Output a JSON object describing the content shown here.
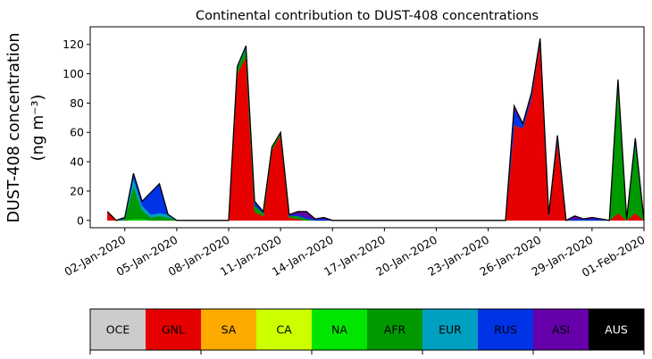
{
  "chart_data": {
    "type": "area",
    "stacked": true,
    "title": "Continental contribution to DUST-408 concentrations",
    "ylabel": "DUST-408 concentration",
    "ylabel_unit": "(ng m⁻³)",
    "xlabel": "",
    "ylim": [
      -5,
      132
    ],
    "y_ticks": [
      0,
      20,
      40,
      60,
      80,
      100,
      120
    ],
    "x_range": [
      "2019-12-31",
      "2020-02-01"
    ],
    "x_ticks": [
      "02-Jan-2020",
      "05-Jan-2020",
      "08-Jan-2020",
      "11-Jan-2020",
      "14-Jan-2020",
      "17-Jan-2020",
      "20-Jan-2020",
      "23-Jan-2020",
      "26-Jan-2020",
      "29-Jan-2020",
      "01-Feb-2020"
    ],
    "x_tick_dates": [
      "2020-01-02",
      "2020-01-05",
      "2020-01-08",
      "2020-01-11",
      "2020-01-14",
      "2020-01-17",
      "2020-01-20",
      "2020-01-23",
      "2020-01-26",
      "2020-01-29",
      "2020-02-01"
    ],
    "grid": false,
    "x": [
      "2020-01-01",
      "2020-01-01 12:00",
      "2020-01-02",
      "2020-01-02 12:00",
      "2020-01-03",
      "2020-01-03 12:00",
      "2020-01-04",
      "2020-01-04 12:00",
      "2020-01-05",
      "2020-01-05 12:00",
      "2020-01-06",
      "2020-01-06 12:00",
      "2020-01-07",
      "2020-01-07 12:00",
      "2020-01-08",
      "2020-01-08 12:00",
      "2020-01-09",
      "2020-01-09 12:00",
      "2020-01-10",
      "2020-01-10 12:00",
      "2020-01-11",
      "2020-01-11 12:00",
      "2020-01-12",
      "2020-01-12 12:00",
      "2020-01-13",
      "2020-01-13 12:00",
      "2020-01-14",
      "2020-01-14 12:00",
      "2020-01-15",
      "2020-01-15 12:00",
      "2020-01-16",
      "2020-01-16 12:00",
      "2020-01-17",
      "2020-01-17 12:00",
      "2020-01-18",
      "2020-01-18 12:00",
      "2020-01-19",
      "2020-01-19 12:00",
      "2020-01-20",
      "2020-01-20 12:00",
      "2020-01-21",
      "2020-01-21 12:00",
      "2020-01-22",
      "2020-01-22 12:00",
      "2020-01-23",
      "2020-01-23 12:00",
      "2020-01-24",
      "2020-01-24 12:00",
      "2020-01-25",
      "2020-01-25 12:00",
      "2020-01-26",
      "2020-01-26 12:00",
      "2020-01-27",
      "2020-01-27 12:00",
      "2020-01-28",
      "2020-01-28 12:00",
      "2020-01-29",
      "2020-01-29 12:00",
      "2020-01-30",
      "2020-01-30 12:00",
      "2020-01-31",
      "2020-01-31 12:00",
      "2020-02-01"
    ],
    "series": [
      {
        "name": "OCE",
        "color": "#cccccc",
        "values": [
          0,
          0,
          0,
          0,
          0,
          0,
          0,
          0,
          0,
          0,
          0,
          0,
          0,
          0,
          0,
          0,
          0,
          0,
          0,
          0,
          0,
          0,
          0,
          0,
          0,
          0,
          0,
          0,
          0,
          0,
          0,
          0,
          0,
          0,
          0,
          0,
          0,
          0,
          0,
          0,
          0,
          0,
          0,
          0,
          0,
          0,
          0,
          0,
          0,
          0,
          0,
          0,
          0,
          0,
          0,
          0,
          0,
          0,
          0,
          0,
          0,
          0,
          0
        ]
      },
      {
        "name": "GNL",
        "color": "#e60000",
        "values": [
          6,
          0,
          0,
          0,
          0,
          0,
          0,
          0,
          0,
          0,
          0,
          0,
          0,
          0,
          0,
          100,
          112,
          6,
          3,
          48,
          58,
          2,
          1,
          0,
          0,
          0,
          0,
          0,
          0,
          0,
          0,
          0,
          0,
          0,
          0,
          0,
          0,
          0,
          0,
          0,
          0,
          0,
          0,
          0,
          0,
          0,
          0,
          65,
          63,
          84,
          122,
          3,
          55,
          0,
          0,
          0,
          0,
          0,
          0,
          5,
          0,
          5,
          0
        ]
      },
      {
        "name": "SA",
        "color": "#ffaa00",
        "values": [
          0,
          0,
          0,
          0,
          0,
          0,
          0,
          0,
          0,
          0,
          0,
          0,
          0,
          0,
          0,
          0,
          0,
          0,
          0,
          0,
          0,
          0,
          0,
          0,
          0,
          0,
          0,
          0,
          0,
          0,
          0,
          0,
          0,
          0,
          0,
          0,
          0,
          0,
          0,
          0,
          0,
          0,
          0,
          0,
          0,
          0,
          0,
          0,
          0,
          0,
          0,
          0,
          0,
          0,
          0,
          0,
          0,
          0,
          0,
          0,
          0,
          0,
          0
        ]
      },
      {
        "name": "CA",
        "color": "#ccff00",
        "values": [
          0,
          0,
          0,
          0,
          0,
          0,
          0,
          0,
          0,
          0,
          0,
          0,
          0,
          0,
          0,
          0,
          0,
          0,
          0,
          0,
          0,
          0,
          0,
          0,
          0,
          0,
          0,
          0,
          0,
          0,
          0,
          0,
          0,
          0,
          0,
          0,
          0,
          0,
          0,
          0,
          0,
          0,
          0,
          0,
          0,
          0,
          0,
          0,
          0,
          0,
          0,
          0,
          0,
          0,
          0,
          0,
          0,
          0,
          0,
          0,
          0,
          0,
          0
        ]
      },
      {
        "name": "NA",
        "color": "#00e600",
        "values": [
          0,
          0,
          0,
          1,
          1,
          0,
          0,
          0,
          0,
          0,
          0,
          0,
          0,
          0,
          0,
          0,
          0,
          0,
          0,
          0,
          0,
          0,
          0,
          0,
          0,
          0,
          0,
          0,
          0,
          0,
          0,
          0,
          0,
          0,
          0,
          0,
          0,
          0,
          0,
          0,
          0,
          0,
          0,
          0,
          0,
          0,
          0,
          0,
          0,
          0,
          0,
          0,
          0,
          0,
          0,
          0,
          0,
          0,
          0,
          0,
          0,
          0,
          0
        ]
      },
      {
        "name": "AFR",
        "color": "#009900",
        "values": [
          0,
          0,
          1,
          22,
          6,
          2,
          3,
          2,
          0,
          0,
          0,
          0,
          0,
          0,
          0,
          4,
          5,
          4,
          2,
          2,
          2,
          1,
          2,
          1,
          0,
          0,
          0,
          0,
          0,
          0,
          0,
          0,
          0,
          0,
          0,
          0,
          0,
          0,
          0,
          0,
          0,
          0,
          0,
          0,
          0,
          0,
          0,
          0,
          0,
          0,
          0,
          0,
          0,
          0,
          0,
          0,
          0,
          0,
          0,
          88,
          1,
          48,
          0
        ]
      },
      {
        "name": "EUR",
        "color": "#00a0c0",
        "values": [
          0,
          0,
          0,
          6,
          3,
          2,
          2,
          2,
          0,
          0,
          0,
          0,
          0,
          0,
          0,
          1,
          1,
          0,
          0,
          0,
          0,
          0,
          0,
          0,
          0,
          0,
          0,
          0,
          0,
          0,
          0,
          0,
          0,
          0,
          0,
          0,
          0,
          0,
          0,
          0,
          0,
          0,
          0,
          0,
          0,
          0,
          0,
          0,
          0,
          0,
          0,
          0,
          0,
          0,
          0,
          0,
          0,
          0,
          0,
          0,
          0,
          0,
          0
        ]
      },
      {
        "name": "RUS",
        "color": "#0033e6",
        "values": [
          0,
          0,
          1,
          3,
          3,
          15,
          20,
          0,
          0,
          0,
          0,
          0,
          0,
          0,
          0,
          0,
          1,
          3,
          1,
          0,
          0,
          1,
          1,
          1,
          1,
          1,
          0,
          0,
          0,
          0,
          0,
          0,
          0,
          0,
          0,
          0,
          0,
          0,
          0,
          0,
          0,
          0,
          0,
          0,
          0,
          0,
          0,
          10,
          3,
          3,
          2,
          1,
          3,
          0,
          1,
          1,
          1,
          1,
          0,
          3,
          0,
          3,
          0
        ]
      },
      {
        "name": "ASI",
        "color": "#6600aa",
        "values": [
          0,
          0,
          0,
          0,
          0,
          0,
          0,
          0,
          0,
          0,
          0,
          0,
          0,
          0,
          0,
          0,
          0,
          0,
          0,
          0,
          0,
          0,
          2,
          4,
          0,
          1,
          0,
          0,
          0,
          0,
          0,
          0,
          0,
          0,
          0,
          0,
          0,
          0,
          0,
          0,
          0,
          0,
          0,
          0,
          0,
          0,
          0,
          3,
          0,
          0,
          0,
          0,
          0,
          0,
          2,
          0,
          1,
          0,
          0,
          0,
          0,
          0,
          0
        ]
      },
      {
        "name": "AUS",
        "color": "#000000",
        "values": [
          0,
          0,
          0,
          0,
          0,
          0,
          0,
          0,
          0,
          0,
          0,
          0,
          0,
          0,
          0,
          0,
          0,
          0,
          0,
          0,
          0,
          0,
          0,
          0,
          0,
          0,
          0,
          0,
          0,
          0,
          0,
          0,
          0,
          0,
          0,
          0,
          0,
          0,
          0,
          0,
          0,
          0,
          0,
          0,
          0,
          0,
          0,
          0,
          0,
          0,
          0,
          0,
          0,
          0,
          0,
          0,
          0,
          0,
          0,
          0,
          0,
          0,
          0
        ]
      }
    ],
    "legend": {
      "placement": "bottom",
      "entries": [
        {
          "label": "OCE",
          "color": "#cccccc",
          "text_color": "#000000"
        },
        {
          "label": "GNL",
          "color": "#e60000",
          "text_color": "#000000"
        },
        {
          "label": "SA",
          "color": "#ffaa00",
          "text_color": "#000000"
        },
        {
          "label": "CA",
          "color": "#ccff00",
          "text_color": "#000000"
        },
        {
          "label": "NA",
          "color": "#00e600",
          "text_color": "#000000"
        },
        {
          "label": "AFR",
          "color": "#009900",
          "text_color": "#000000"
        },
        {
          "label": "EUR",
          "color": "#00a0c0",
          "text_color": "#000000"
        },
        {
          "label": "RUS",
          "color": "#0033e6",
          "text_color": "#000000"
        },
        {
          "label": "ASI",
          "color": "#6600aa",
          "text_color": "#000000"
        },
        {
          "label": "AUS",
          "color": "#000000",
          "text_color": "#ffffff"
        }
      ]
    }
  }
}
